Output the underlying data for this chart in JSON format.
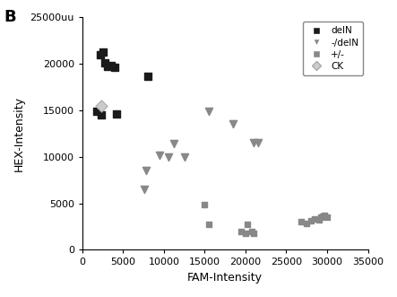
{
  "title_label": "B",
  "xlabel": "FAM-Intensity",
  "ylabel": "HEX-Intensity",
  "xlim": [
    0,
    35000
  ],
  "ylim": [
    0,
    25000
  ],
  "xticks": [
    0,
    5000,
    10000,
    15000,
    20000,
    25000,
    30000,
    35000
  ],
  "yticks": [
    0,
    5000,
    10000,
    15000,
    20000,
    25000
  ],
  "ytick_labels": [
    "0",
    "5000",
    "10000",
    "15000",
    "20000",
    "25000uu"
  ],
  "delN": {
    "x": [
      2200,
      2500,
      2700,
      3100,
      3500,
      4000,
      8000,
      1800,
      2300,
      4200
    ],
    "y": [
      21000,
      21200,
      20100,
      19700,
      19800,
      19600,
      18600,
      14900,
      14500,
      14600
    ],
    "color": "#1a1a1a",
    "marker": "s",
    "size": 35,
    "label": "delN"
  },
  "plus_delN": {
    "x": [
      7600,
      7800,
      9500,
      10500,
      11200,
      12500,
      15500,
      18500,
      21000,
      21500
    ],
    "y": [
      6500,
      8500,
      10200,
      10000,
      11400,
      10000,
      14900,
      13500,
      11500,
      11500
    ],
    "color": "#888888",
    "marker": "v",
    "size": 35,
    "label": "-/delN"
  },
  "plus_minus": {
    "x": [
      15000,
      15500,
      19500,
      20000,
      20200,
      20800,
      21000,
      26800,
      27500,
      28000,
      28500,
      29000,
      29200,
      29500,
      29700,
      30000
    ],
    "y": [
      4900,
      2700,
      2000,
      1800,
      2700,
      2000,
      1800,
      3000,
      2800,
      3100,
      3300,
      3200,
      3500,
      3600,
      3700,
      3500
    ],
    "color": "#888888",
    "marker": "s",
    "size": 25,
    "label": "+/-"
  },
  "CK": {
    "x": [
      2300
    ],
    "y": [
      15500
    ],
    "color": "#cccccc",
    "marker": "D",
    "size": 45,
    "label": "CK"
  },
  "background_color": "#ffffff",
  "legend_fontsize": 7.5,
  "axis_fontsize": 8,
  "label_fontsize": 9
}
